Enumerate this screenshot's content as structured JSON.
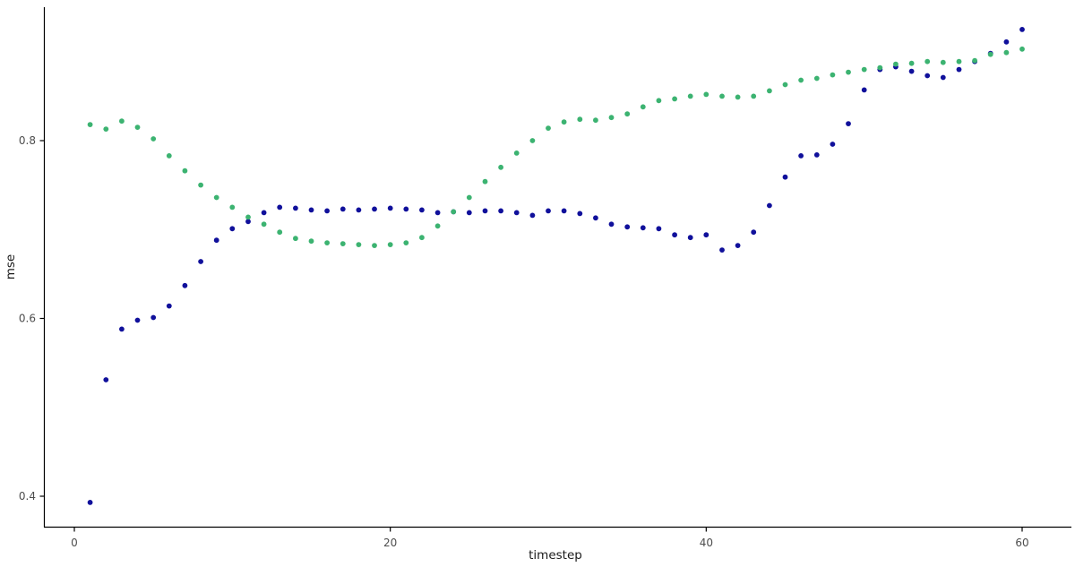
{
  "figure": {
    "background_color": "#ffffff",
    "axis_line_color": "#000000",
    "tick_label_color": "#4d4d4d",
    "axis_title_color": "#1a1a1a"
  },
  "chart_data": {
    "type": "scatter",
    "title": "",
    "xlabel": "timestep",
    "ylabel": "mse",
    "grid": false,
    "legend": "none",
    "xlim": [
      -2,
      63.1
    ],
    "ylim": [
      0.366,
      0.95
    ],
    "x_ticks": [
      0,
      20,
      40,
      60
    ],
    "y_ticks": [
      0.4,
      0.6,
      0.8
    ],
    "x": [
      1,
      2,
      3,
      4,
      5,
      6,
      7,
      8,
      9,
      10,
      11,
      12,
      13,
      14,
      15,
      16,
      17,
      18,
      19,
      20,
      21,
      22,
      23,
      24,
      25,
      26,
      27,
      28,
      29,
      30,
      31,
      32,
      33,
      34,
      35,
      36,
      37,
      38,
      39,
      40,
      41,
      42,
      43,
      44,
      45,
      46,
      47,
      48,
      49,
      50,
      51,
      52,
      53,
      54,
      55,
      56,
      57,
      58,
      59,
      60
    ],
    "series": [
      {
        "name": "navy-series",
        "color": "#10109b",
        "values": [
          0.393,
          0.531,
          0.588,
          0.598,
          0.601,
          0.614,
          0.637,
          0.664,
          0.688,
          0.701,
          0.709,
          0.719,
          0.725,
          0.724,
          0.722,
          0.721,
          0.723,
          0.722,
          0.723,
          0.724,
          0.723,
          0.722,
          0.719,
          0.72,
          0.719,
          0.721,
          0.721,
          0.719,
          0.716,
          0.721,
          0.721,
          0.718,
          0.713,
          0.706,
          0.703,
          0.702,
          0.701,
          0.694,
          0.691,
          0.694,
          0.677,
          0.682,
          0.697,
          0.727,
          0.759,
          0.783,
          0.784,
          0.796,
          0.819,
          0.857,
          0.88,
          0.883,
          0.878,
          0.873,
          0.871,
          0.88,
          0.889,
          0.898,
          0.911,
          0.925
        ]
      },
      {
        "name": "green-series",
        "color": "#3cb371",
        "values": [
          0.818,
          0.813,
          0.822,
          0.815,
          0.802,
          0.783,
          0.766,
          0.75,
          0.736,
          0.725,
          0.714,
          0.706,
          0.697,
          0.69,
          0.687,
          0.685,
          0.684,
          0.683,
          0.682,
          0.683,
          0.685,
          0.691,
          0.704,
          0.72,
          0.736,
          0.754,
          0.77,
          0.786,
          0.8,
          0.814,
          0.821,
          0.824,
          0.823,
          0.826,
          0.83,
          0.838,
          0.845,
          0.847,
          0.85,
          0.852,
          0.85,
          0.849,
          0.85,
          0.856,
          0.863,
          0.868,
          0.87,
          0.874,
          0.877,
          0.88,
          0.882,
          0.886,
          0.887,
          0.889,
          0.888,
          0.889,
          0.89,
          0.897,
          0.899,
          0.903
        ]
      }
    ]
  }
}
